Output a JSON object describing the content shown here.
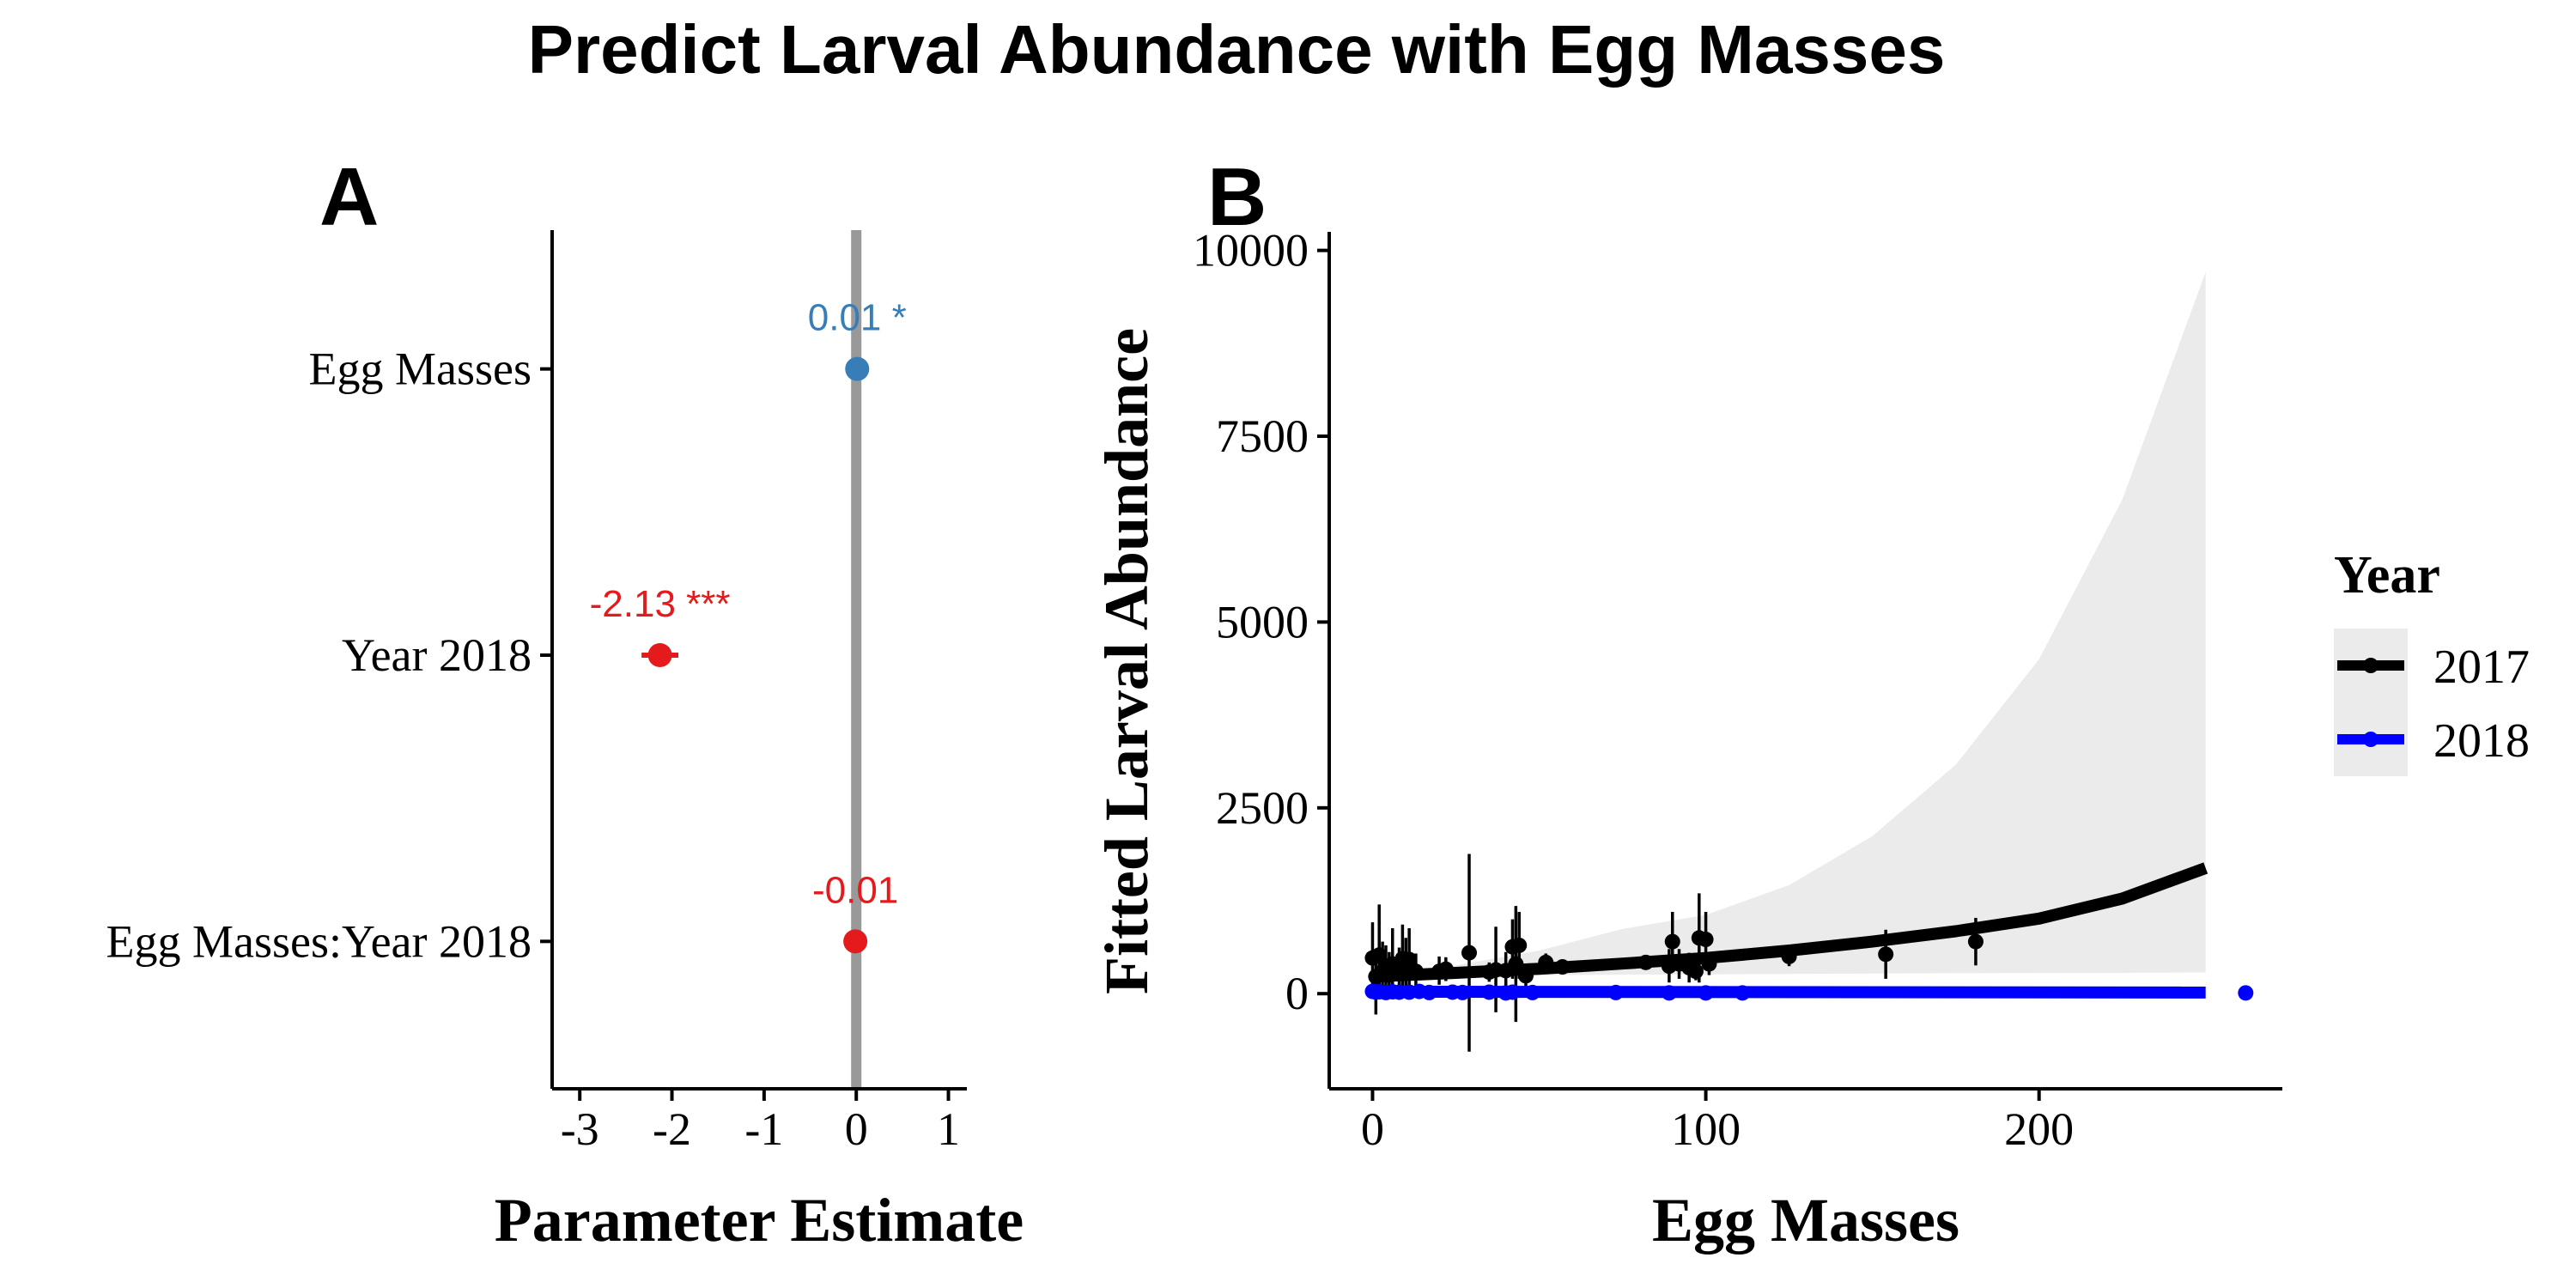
{
  "title": "Predict Larval Abundance with Egg Masses",
  "colors": {
    "sig_positive": "#377EB8",
    "negative": "#E41A1C",
    "zero_line": "#999999",
    "year_2017": "#000000",
    "year_2018": "#0000FF",
    "ci_band": "#EBEBEB"
  },
  "chart_data": [
    {
      "panel": "A",
      "type": "scatter",
      "subtype": "coefficient-plot",
      "xlabel": "Parameter Estimate",
      "ylabel": "",
      "xlim": [
        -3.3,
        1.2
      ],
      "xticks": [
        -3,
        -2,
        -1,
        0,
        1
      ],
      "xtick_labels": [
        "-3",
        "-2",
        "-1",
        "0",
        "1"
      ],
      "reference_line_x": 0,
      "terms": [
        {
          "term": "Egg Masses",
          "estimate": 0.01,
          "ci": [
            0.0,
            0.02
          ],
          "label": "0.01 *",
          "color": "#377EB8"
        },
        {
          "term": "Year 2018",
          "estimate": -2.13,
          "ci": [
            -2.33,
            -1.93
          ],
          "label": "-2.13 ***",
          "color": "#E41A1C"
        },
        {
          "term": "Egg Masses:Year 2018",
          "estimate": -0.01,
          "ci": [
            -0.02,
            0.0
          ],
          "label": "-0.01",
          "color": "#E41A1C"
        }
      ]
    },
    {
      "panel": "B",
      "type": "line",
      "xlabel": "Egg Masses",
      "ylabel": "Fitted Larval Abundance",
      "xlim": [
        -13,
        273
      ],
      "ylim": [
        -1280,
        10250
      ],
      "xticks": [
        0,
        100,
        200
      ],
      "xtick_labels": [
        "0",
        "100",
        "200"
      ],
      "yticks": [
        0,
        2500,
        5000,
        7500,
        10000
      ],
      "ytick_labels": [
        "0",
        "2500",
        "5000",
        "7500",
        "10000"
      ],
      "grid": false,
      "legend": {
        "title": "Year",
        "position": "right",
        "entries": [
          "2017",
          "2018"
        ]
      },
      "series": [
        {
          "name": "2017",
          "color": "#000000",
          "fit": {
            "x": [
              0,
              25,
              50,
              75,
              100,
              125,
              150,
              175,
              200,
              225,
              250
            ],
            "y": [
              230,
              280,
              335,
              405,
              480,
              580,
              700,
              840,
              1010,
              1280,
              1690
            ]
          },
          "ci_band": {
            "x": [
              0,
              25,
              50,
              75,
              100,
              125,
              150,
              175,
              200,
              225,
              250
            ],
            "lower": [
              220,
              240,
              250,
              255,
              260,
              265,
              270,
              275,
              280,
              280,
              285
            ],
            "upper": [
              280,
              380,
              580,
              870,
              1060,
              1460,
              2120,
              3080,
              4500,
              6650,
              9710
            ]
          },
          "points": [
            {
              "x": 0,
              "y": 480,
              "lo": 0,
              "hi": 960
            },
            {
              "x": 1,
              "y": 230,
              "lo": -280,
              "hi": 600
            },
            {
              "x": 2,
              "y": 520,
              "lo": 120,
              "hi": 1200
            },
            {
              "x": 3,
              "y": 300,
              "lo": 0,
              "hi": 700
            },
            {
              "x": 4,
              "y": 350,
              "lo": 50,
              "hi": 650
            },
            {
              "x": 5,
              "y": 250,
              "lo": -40,
              "hi": 560
            },
            {
              "x": 6,
              "y": 400,
              "lo": 80,
              "hi": 880
            },
            {
              "x": 8,
              "y": 300,
              "lo": 60,
              "hi": 620
            },
            {
              "x": 9,
              "y": 470,
              "lo": 80,
              "hi": 930
            },
            {
              "x": 10,
              "y": 330,
              "lo": 0,
              "hi": 750
            },
            {
              "x": 11,
              "y": 460,
              "lo": 60,
              "hi": 880
            },
            {
              "x": 13,
              "y": 300,
              "lo": 70,
              "hi": 540
            },
            {
              "x": 20,
              "y": 300,
              "lo": 120,
              "hi": 500
            },
            {
              "x": 22,
              "y": 330,
              "lo": 170,
              "hi": 490
            },
            {
              "x": 29,
              "y": 550,
              "lo": -780,
              "hi": 1880
            },
            {
              "x": 35,
              "y": 290,
              "lo": 160,
              "hi": 420
            },
            {
              "x": 37,
              "y": 320,
              "lo": -250,
              "hi": 900
            },
            {
              "x": 40,
              "y": 310,
              "lo": 60,
              "hi": 560
            },
            {
              "x": 42,
              "y": 630,
              "lo": 200,
              "hi": 1000
            },
            {
              "x": 43,
              "y": 400,
              "lo": -380,
              "hi": 1180
            },
            {
              "x": 44,
              "y": 650,
              "lo": 200,
              "hi": 1100
            },
            {
              "x": 46,
              "y": 240,
              "lo": 80,
              "hi": 400
            },
            {
              "x": 52,
              "y": 420,
              "lo": 300,
              "hi": 540
            },
            {
              "x": 57,
              "y": 360,
              "lo": 280,
              "hi": 440
            },
            {
              "x": 82,
              "y": 420,
              "lo": 320,
              "hi": 520
            },
            {
              "x": 89,
              "y": 370,
              "lo": 150,
              "hi": 600
            },
            {
              "x": 90,
              "y": 700,
              "lo": 300,
              "hi": 1100
            },
            {
              "x": 92,
              "y": 400,
              "lo": 200,
              "hi": 600
            },
            {
              "x": 95,
              "y": 350,
              "lo": 150,
              "hi": 550
            },
            {
              "x": 97,
              "y": 300,
              "lo": 180,
              "hi": 420
            },
            {
              "x": 98,
              "y": 750,
              "lo": 150,
              "hi": 1350
            },
            {
              "x": 100,
              "y": 730,
              "lo": 350,
              "hi": 1100
            },
            {
              "x": 101,
              "y": 400,
              "lo": 250,
              "hi": 550
            },
            {
              "x": 125,
              "y": 500,
              "lo": 370,
              "hi": 630
            },
            {
              "x": 154,
              "y": 530,
              "lo": 200,
              "hi": 860
            },
            {
              "x": 181,
              "y": 700,
              "lo": 380,
              "hi": 1020
            }
          ]
        },
        {
          "name": "2018",
          "color": "#0000FF",
          "fit": {
            "x": [
              0,
              250
            ],
            "y": [
              25,
              15
            ]
          },
          "ci_band": {
            "x": [
              0,
              250
            ],
            "lower": [
              15,
              0
            ],
            "upper": [
              35,
              40
            ]
          },
          "points": [
            {
              "x": 0,
              "y": 30
            },
            {
              "x": 1,
              "y": 20
            },
            {
              "x": 2,
              "y": 25
            },
            {
              "x": 4,
              "y": 15
            },
            {
              "x": 6,
              "y": 25
            },
            {
              "x": 8,
              "y": 20
            },
            {
              "x": 11,
              "y": 20
            },
            {
              "x": 14,
              "y": 30
            },
            {
              "x": 17,
              "y": 15
            },
            {
              "x": 24,
              "y": 20
            },
            {
              "x": 27,
              "y": 15
            },
            {
              "x": 35,
              "y": 20
            },
            {
              "x": 40,
              "y": 10
            },
            {
              "x": 42,
              "y": 20
            },
            {
              "x": 48,
              "y": 15
            },
            {
              "x": 73,
              "y": 15
            },
            {
              "x": 89,
              "y": 10
            },
            {
              "x": 100,
              "y": 10
            },
            {
              "x": 111,
              "y": 10
            },
            {
              "x": 262,
              "y": 10
            }
          ]
        }
      ]
    }
  ]
}
